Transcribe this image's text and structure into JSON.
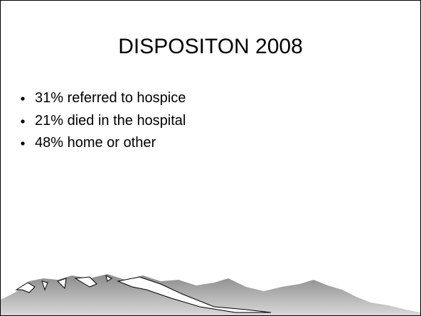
{
  "title": "DISPOSITON 2008",
  "bullets": [
    "31% referred to hospice",
    "21% died in the hospital",
    "48% home or other"
  ]
}
